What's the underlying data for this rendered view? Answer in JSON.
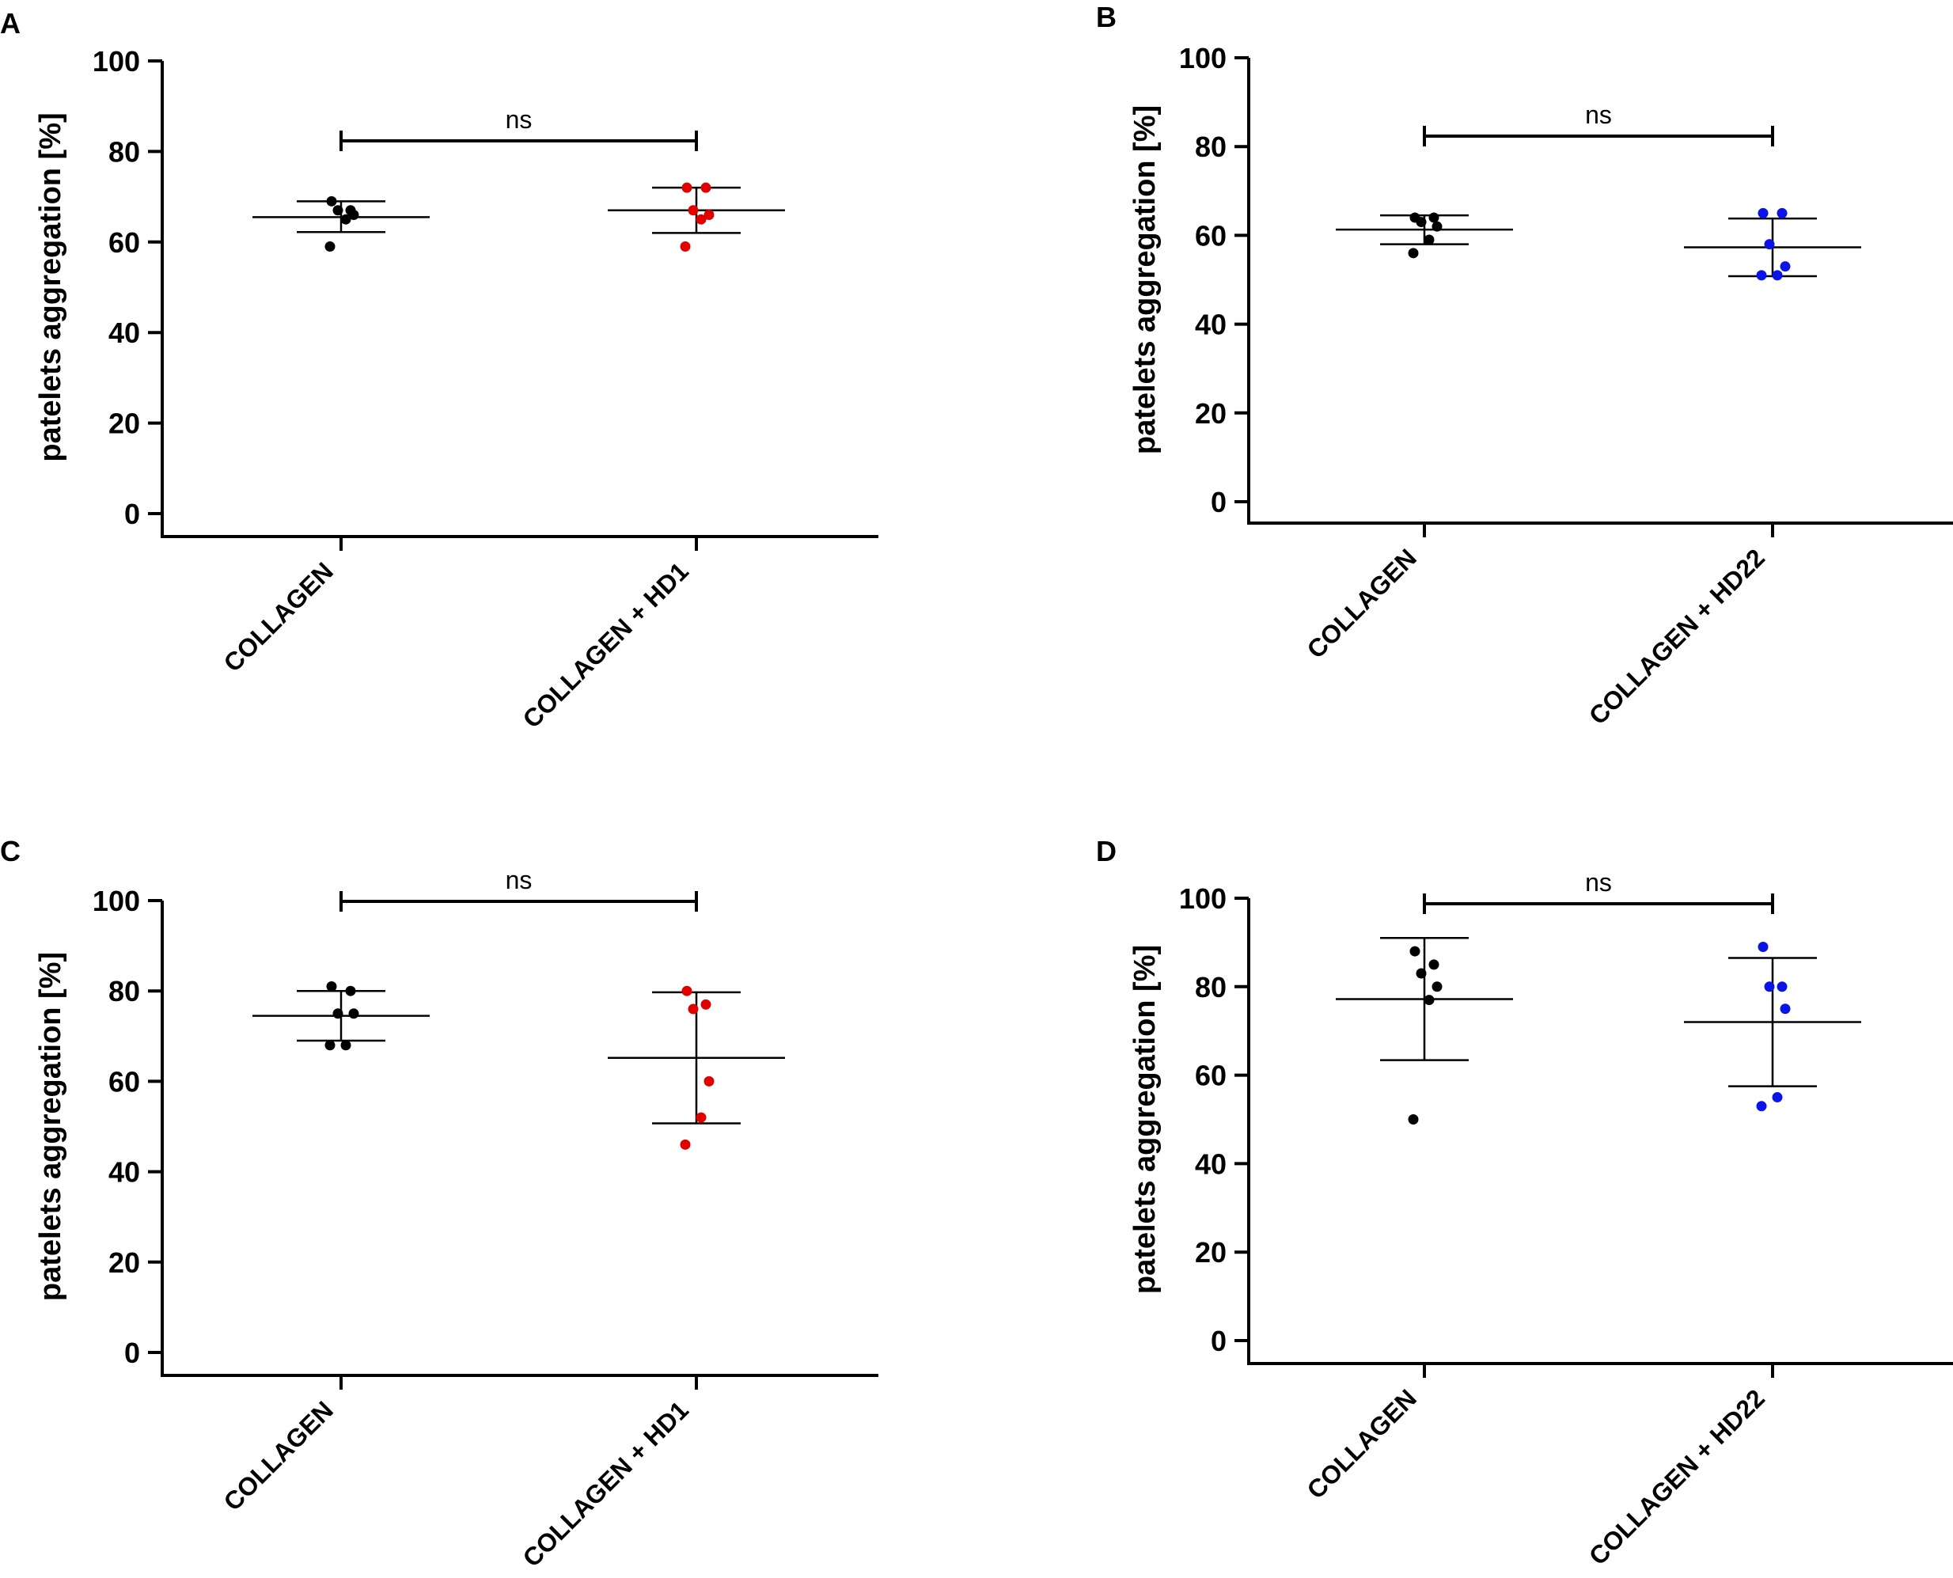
{
  "chart_data": [
    {
      "panel": "A",
      "type": "scatter",
      "ylabel": "patelets aggregation [%]",
      "ylim": [
        0,
        100
      ],
      "yticks": [
        "0",
        "20",
        "40",
        "60",
        "80",
        "100"
      ],
      "categories": [
        "COLLAGEN",
        "COLLAGEN + HD1"
      ],
      "series": [
        {
          "name": "COLLAGEN",
          "color": "#000000",
          "points": [
            69,
            67,
            67,
            66,
            65,
            59
          ],
          "mean": 65.5,
          "sd_low": 62.2,
          "sd_high": 69.0
        },
        {
          "name": "COLLAGEN + HD1",
          "color": "#e00000",
          "points": [
            72,
            72,
            67,
            66,
            65,
            59
          ],
          "mean": 67.0,
          "sd_low": 62.0,
          "sd_high": 72.0
        }
      ],
      "significance": "ns"
    },
    {
      "panel": "B",
      "type": "scatter",
      "ylabel": "patelets aggregation [%]",
      "ylim": [
        0,
        100
      ],
      "yticks": [
        "0",
        "20",
        "40",
        "60",
        "80",
        "100"
      ],
      "categories": [
        "COLLAGEN",
        "COLLAGEN + HD22"
      ],
      "series": [
        {
          "name": "COLLAGEN",
          "color": "#000000",
          "points": [
            64,
            64,
            63,
            62,
            59,
            56
          ],
          "mean": 61.3,
          "sd_low": 58.0,
          "sd_high": 64.5
        },
        {
          "name": "COLLAGEN + HD22",
          "color": "#0a14e6",
          "points": [
            65,
            65,
            58,
            53,
            51,
            51
          ],
          "mean": 57.3,
          "sd_low": 50.8,
          "sd_high": 63.8
        }
      ],
      "significance": "ns"
    },
    {
      "panel": "C",
      "type": "scatter",
      "ylabel": "patelets aggregation [%]",
      "ylim": [
        0,
        100
      ],
      "yticks": [
        "0",
        "20",
        "40",
        "60",
        "80",
        "100"
      ],
      "categories": [
        "COLLAGEN",
        "COLLAGEN + HD1"
      ],
      "series": [
        {
          "name": "COLLAGEN",
          "color": "#000000",
          "points": [
            81,
            80,
            75,
            75,
            68,
            68
          ],
          "mean": 74.5,
          "sd_low": 69.0,
          "sd_high": 80.0
        },
        {
          "name": "COLLAGEN + HD1",
          "color": "#e00000",
          "points": [
            80,
            77,
            76,
            60,
            52,
            46
          ],
          "mean": 65.2,
          "sd_low": 50.7,
          "sd_high": 79.7
        }
      ],
      "significance": "ns"
    },
    {
      "panel": "D",
      "type": "scatter",
      "ylabel": "patelets aggregation [%]",
      "ylim": [
        0,
        100
      ],
      "yticks": [
        "0",
        "20",
        "40",
        "60",
        "80",
        "100"
      ],
      "categories": [
        "COLLAGEN",
        "COLLAGEN + HD22"
      ],
      "series": [
        {
          "name": "COLLAGEN",
          "color": "#000000",
          "points": [
            88,
            85,
            83,
            80,
            77,
            50
          ],
          "mean": 77.2,
          "sd_low": 63.4,
          "sd_high": 91.0
        },
        {
          "name": "COLLAGEN + HD22",
          "color": "#0a14e6",
          "points": [
            89,
            80,
            80,
            75,
            55,
            53
          ],
          "mean": 72.0,
          "sd_low": 57.5,
          "sd_high": 86.5
        }
      ],
      "significance": "ns"
    }
  ]
}
